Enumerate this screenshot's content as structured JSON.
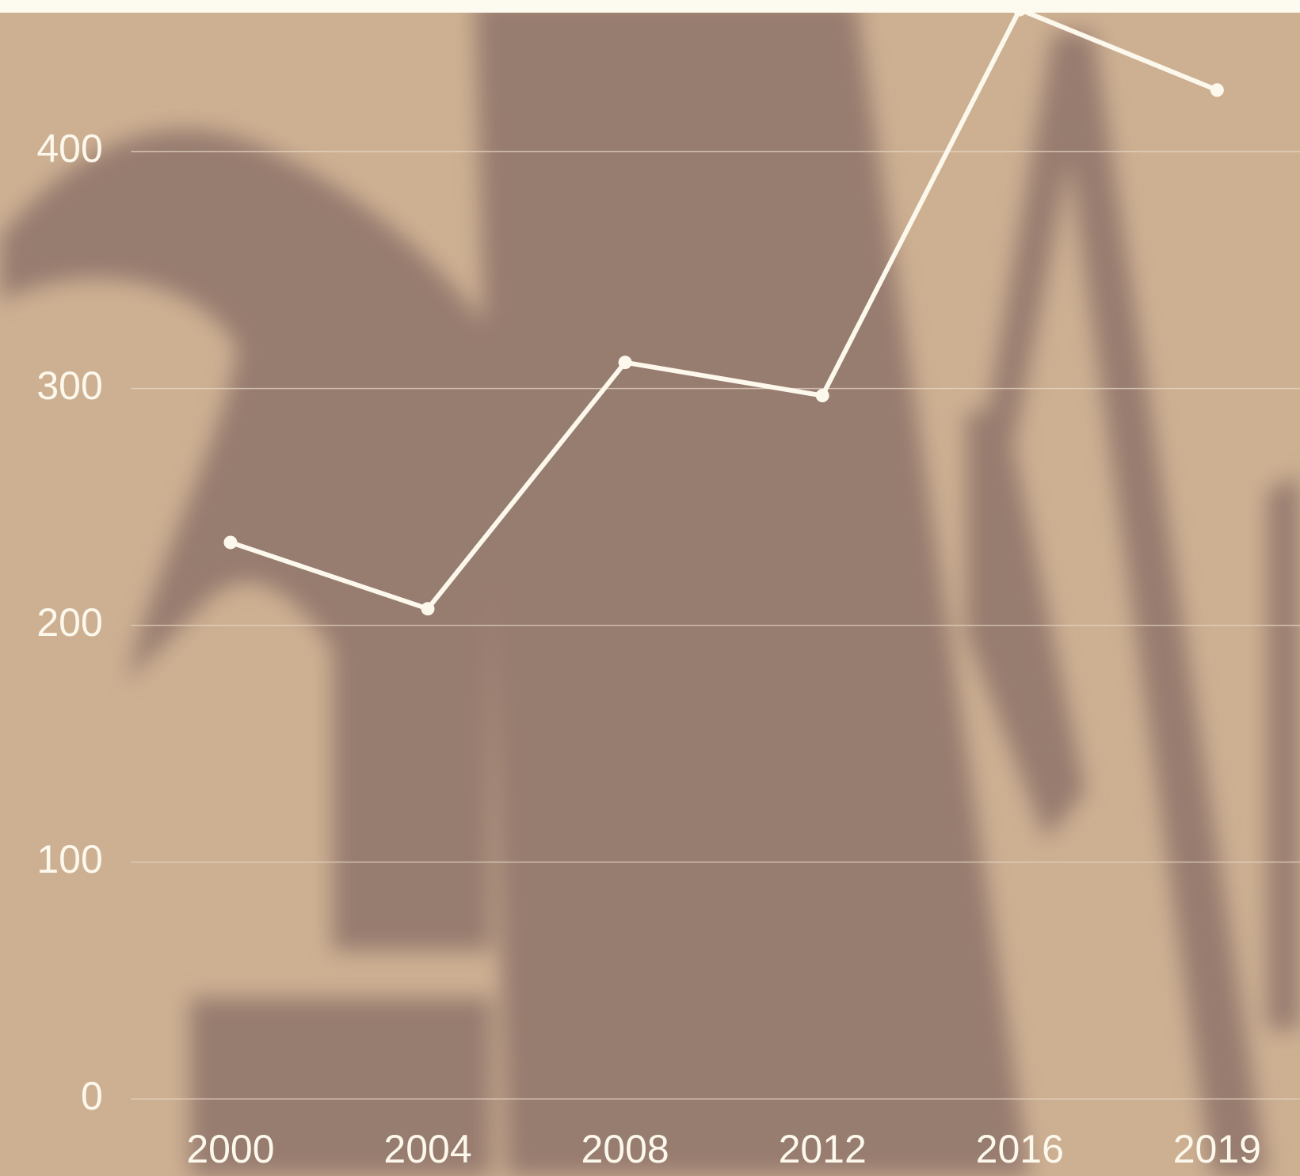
{
  "chart_data": {
    "type": "line",
    "categories": [
      "2000",
      "2004",
      "2008",
      "2012",
      "2016",
      "2019"
    ],
    "values": [
      235,
      207,
      311,
      297,
      460,
      426
    ],
    "color": "#fdf8ec",
    "ylim": [
      0,
      464
    ],
    "yticks": [
      0,
      100,
      200,
      300,
      400
    ],
    "grid": true
  }
}
